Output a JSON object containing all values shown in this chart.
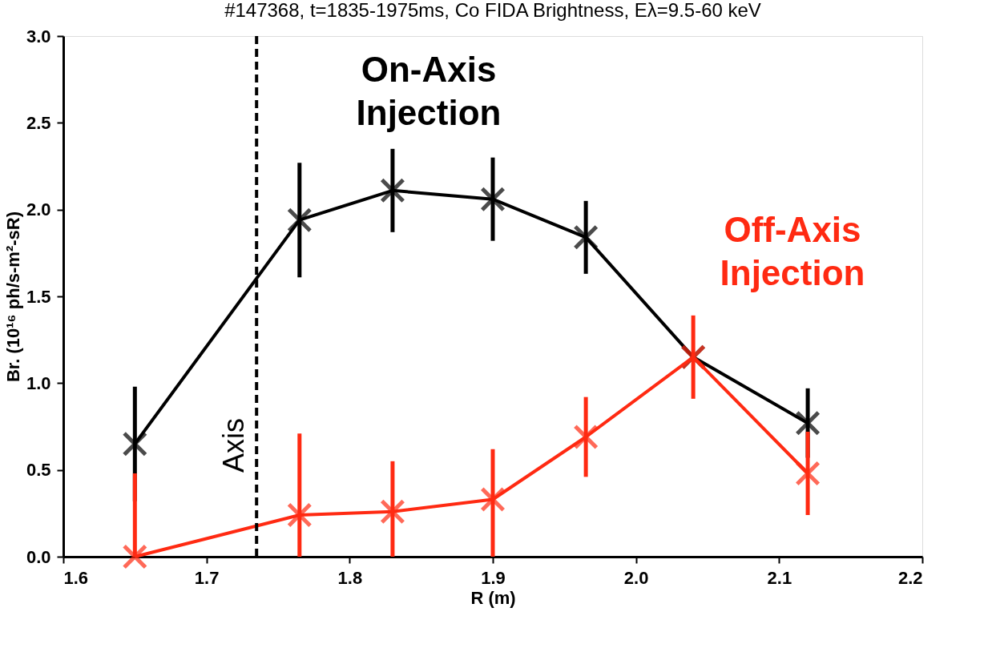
{
  "chart_data": {
    "type": "line",
    "title": "#147368, t=1835-1975ms, Co FIDA Brightness, Eλ=9.5-60 keV",
    "xlabel": "R (m)",
    "ylabel": "Br. (10¹⁶ ph/s-m²-sR)",
    "x": [
      1.65,
      1.765,
      1.83,
      1.9,
      1.965,
      2.04,
      2.12
    ],
    "series": [
      {
        "name": "On-Axis Injection",
        "color": "#000000",
        "values": [
          0.65,
          1.94,
          2.11,
          2.06,
          1.84,
          1.15,
          0.77
        ],
        "errors": [
          0.33,
          0.33,
          0.24,
          0.24,
          0.21,
          null,
          0.2
        ]
      },
      {
        "name": "Off-Axis Injection",
        "color": "#ff2a12",
        "values": [
          0.0,
          0.24,
          0.26,
          0.33,
          0.69,
          1.15,
          0.48
        ],
        "errors": [
          [
            0.0,
            0.48
          ],
          [
            0.0,
            0.71
          ],
          [
            0.0,
            0.55
          ],
          [
            0.0,
            0.62
          ],
          0.23,
          0.24,
          0.24
        ]
      }
    ],
    "xlim": [
      1.6,
      2.2
    ],
    "ylim": [
      0,
      3
    ],
    "xticks": [
      1.6,
      1.7,
      1.8,
      1.9,
      {
        "value": 2.0,
        "label": "2.0"
      },
      2.1,
      2.2
    ],
    "yticks": [
      {
        "value": 0,
        "label": "0.0"
      },
      0.5,
      {
        "value": 1,
        "label": "1.0"
      },
      1.5,
      {
        "value": 2,
        "label": "2.0"
      },
      2.5,
      {
        "value": 3,
        "label": "3.0"
      }
    ],
    "ref_lines": [
      {
        "axis": "x",
        "value": 1.735,
        "label": "Axis",
        "color": "#000000",
        "line_style": "dashed"
      }
    ],
    "marker": "cross",
    "line_style": "solid",
    "grid": false
  }
}
